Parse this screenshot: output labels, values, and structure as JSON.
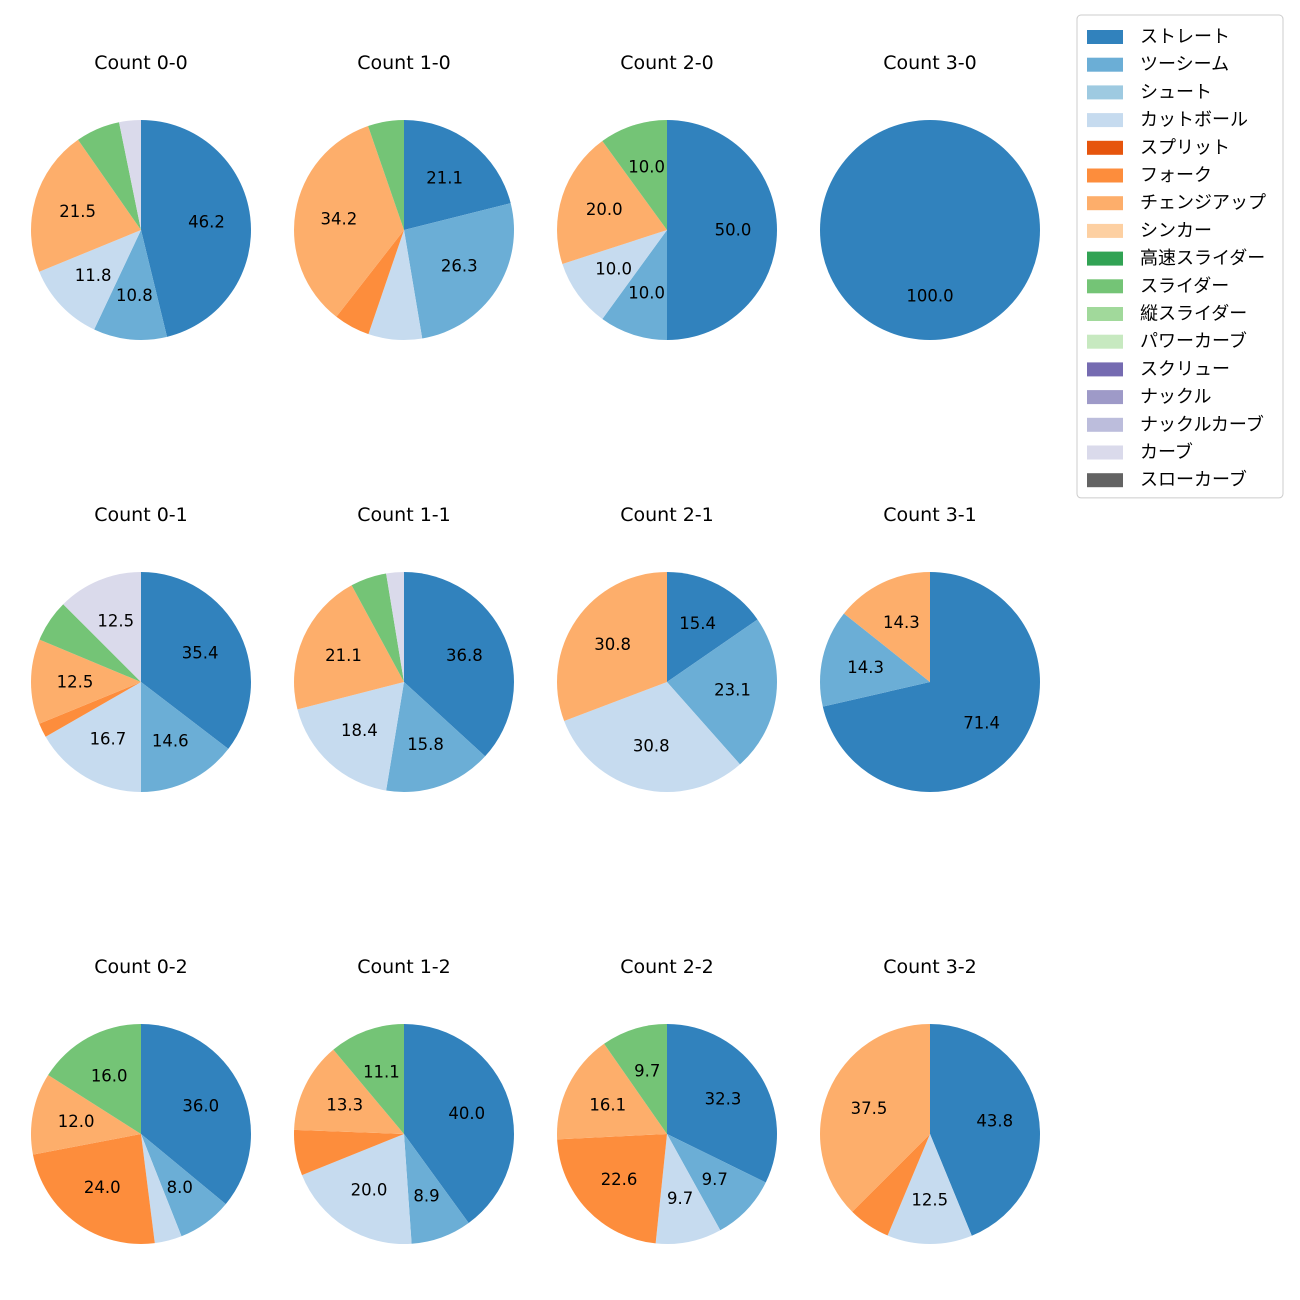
{
  "chart_data": {
    "type": "pie",
    "start_angle": 90,
    "direction": "clockwise",
    "label_threshold": 8,
    "legend": {
      "placement": "top-right",
      "entries": [
        {
          "name": "ストレート",
          "color": "#3182bd"
        },
        {
          "name": "ツーシーム",
          "color": "#6baed6"
        },
        {
          "name": "シュート",
          "color": "#9ecae1"
        },
        {
          "name": "カットボール",
          "color": "#c6dbef"
        },
        {
          "name": "スプリット",
          "color": "#e6550d"
        },
        {
          "name": "フォーク",
          "color": "#fd8d3c"
        },
        {
          "name": "チェンジアップ",
          "color": "#fdae6b"
        },
        {
          "name": "シンカー",
          "color": "#fdd0a2"
        },
        {
          "name": "高速スライダー",
          "color": "#31a354"
        },
        {
          "name": "スライダー",
          "color": "#74c476"
        },
        {
          "name": "縦スライダー",
          "color": "#a1d99b"
        },
        {
          "name": "パワーカーブ",
          "color": "#c7e9c0"
        },
        {
          "name": "スクリュー",
          "color": "#756bb1"
        },
        {
          "name": "ナックル",
          "color": "#9e9ac8"
        },
        {
          "name": "ナックルカーブ",
          "color": "#bcbddc"
        },
        {
          "name": "カーブ",
          "color": "#dadaeb"
        },
        {
          "name": "スローカーブ",
          "color": "#636363"
        }
      ]
    },
    "charts": [
      {
        "title": "Count 0-0",
        "slices": [
          {
            "pitch": "ストレート",
            "value": 46.2
          },
          {
            "pitch": "ツーシーム",
            "value": 10.8
          },
          {
            "pitch": "カットボール",
            "value": 11.8
          },
          {
            "pitch": "チェンジアップ",
            "value": 21.5
          },
          {
            "pitch": "スライダー",
            "value": 6.5
          },
          {
            "pitch": "カーブ",
            "value": 3.2
          }
        ]
      },
      {
        "title": "Count 1-0",
        "slices": [
          {
            "pitch": "ストレート",
            "value": 21.1
          },
          {
            "pitch": "ツーシーム",
            "value": 26.3
          },
          {
            "pitch": "カットボール",
            "value": 7.9
          },
          {
            "pitch": "フォーク",
            "value": 5.3
          },
          {
            "pitch": "チェンジアップ",
            "value": 34.2
          },
          {
            "pitch": "スライダー",
            "value": 5.3
          }
        ]
      },
      {
        "title": "Count 2-0",
        "slices": [
          {
            "pitch": "ストレート",
            "value": 50.0
          },
          {
            "pitch": "ツーシーム",
            "value": 10.0
          },
          {
            "pitch": "カットボール",
            "value": 10.0
          },
          {
            "pitch": "チェンジアップ",
            "value": 20.0
          },
          {
            "pitch": "スライダー",
            "value": 10.0
          }
        ]
      },
      {
        "title": "Count 3-0",
        "slices": [
          {
            "pitch": "ストレート",
            "value": 100.0
          }
        ]
      },
      {
        "title": "Count 0-1",
        "slices": [
          {
            "pitch": "ストレート",
            "value": 35.4
          },
          {
            "pitch": "ツーシーム",
            "value": 14.6
          },
          {
            "pitch": "カットボール",
            "value": 16.7
          },
          {
            "pitch": "フォーク",
            "value": 2.1
          },
          {
            "pitch": "チェンジアップ",
            "value": 12.5
          },
          {
            "pitch": "スライダー",
            "value": 6.2
          },
          {
            "pitch": "カーブ",
            "value": 12.5
          }
        ]
      },
      {
        "title": "Count 1-1",
        "slices": [
          {
            "pitch": "ストレート",
            "value": 36.8
          },
          {
            "pitch": "ツーシーム",
            "value": 15.8
          },
          {
            "pitch": "カットボール",
            "value": 18.4
          },
          {
            "pitch": "チェンジアップ",
            "value": 21.1
          },
          {
            "pitch": "スライダー",
            "value": 5.3
          },
          {
            "pitch": "カーブ",
            "value": 2.6
          }
        ]
      },
      {
        "title": "Count 2-1",
        "slices": [
          {
            "pitch": "ストレート",
            "value": 15.4
          },
          {
            "pitch": "ツーシーム",
            "value": 23.1
          },
          {
            "pitch": "カットボール",
            "value": 30.8
          },
          {
            "pitch": "チェンジアップ",
            "value": 30.8
          }
        ]
      },
      {
        "title": "Count 3-1",
        "slices": [
          {
            "pitch": "ストレート",
            "value": 71.4
          },
          {
            "pitch": "ツーシーム",
            "value": 14.3
          },
          {
            "pitch": "チェンジアップ",
            "value": 14.3
          }
        ]
      },
      {
        "title": "Count 0-2",
        "slices": [
          {
            "pitch": "ストレート",
            "value": 36.0
          },
          {
            "pitch": "ツーシーム",
            "value": 8.0
          },
          {
            "pitch": "カットボール",
            "value": 4.0
          },
          {
            "pitch": "フォーク",
            "value": 24.0
          },
          {
            "pitch": "チェンジアップ",
            "value": 12.0
          },
          {
            "pitch": "スライダー",
            "value": 16.0
          }
        ]
      },
      {
        "title": "Count 1-2",
        "slices": [
          {
            "pitch": "ストレート",
            "value": 40.0
          },
          {
            "pitch": "ツーシーム",
            "value": 8.9
          },
          {
            "pitch": "カットボール",
            "value": 20.0
          },
          {
            "pitch": "フォーク",
            "value": 6.7
          },
          {
            "pitch": "チェンジアップ",
            "value": 13.3
          },
          {
            "pitch": "スライダー",
            "value": 11.1
          }
        ]
      },
      {
        "title": "Count 2-2",
        "slices": [
          {
            "pitch": "ストレート",
            "value": 32.3
          },
          {
            "pitch": "ツーシーム",
            "value": 9.7
          },
          {
            "pitch": "カットボール",
            "value": 9.7
          },
          {
            "pitch": "フォーク",
            "value": 22.6
          },
          {
            "pitch": "チェンジアップ",
            "value": 16.1
          },
          {
            "pitch": "スライダー",
            "value": 9.7
          }
        ]
      },
      {
        "title": "Count 3-2",
        "slices": [
          {
            "pitch": "ストレート",
            "value": 43.8
          },
          {
            "pitch": "カットボール",
            "value": 12.5
          },
          {
            "pitch": "フォーク",
            "value": 6.2
          },
          {
            "pitch": "チェンジアップ",
            "value": 37.5
          }
        ]
      }
    ]
  }
}
